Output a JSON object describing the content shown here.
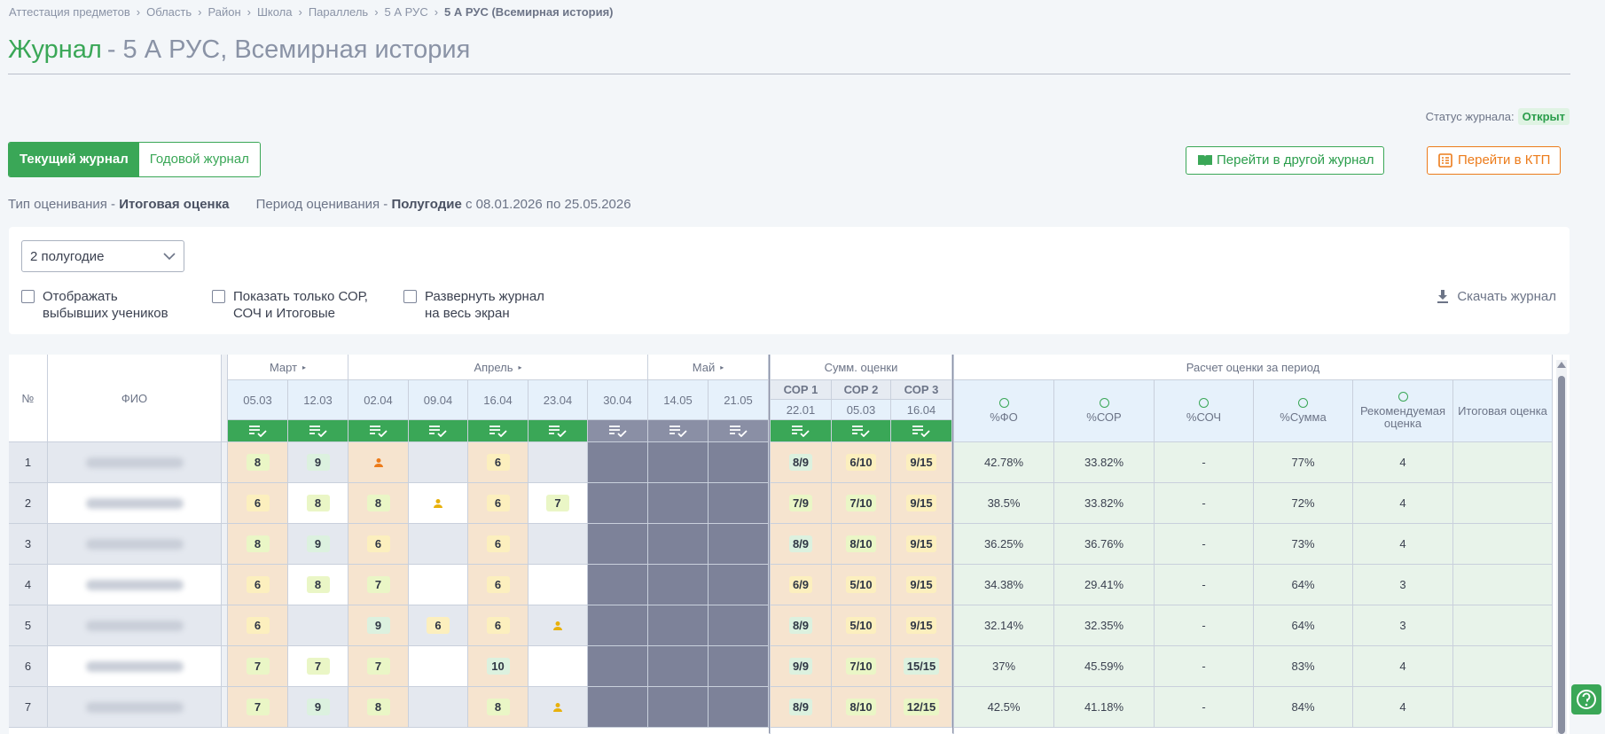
{
  "breadcrumbs": [
    "Аттестация предметов",
    "Область",
    "Район",
    "Школа",
    "Параллель",
    "5 А РУС",
    "5 А РУС (Всемирная история)"
  ],
  "header": {
    "title": "Журнал",
    "subtitle": "- 5 А РУС, Всемирная история",
    "status_label": "Статус журнала:",
    "status": "Открыт"
  },
  "tabs": [
    "Текущий журнал",
    "Годовой журнал"
  ],
  "actions": [
    "Перейти в другой журнал",
    "Перейти в КТП"
  ],
  "info": {
    "type_label": "Тип оценивания -",
    "type_value": "Итоговая оценка",
    "period_label": "Период оценивания -",
    "period_value": "Полугодие",
    "period_range": "с 08.01.2026 по 25.05.2026"
  },
  "filters": {
    "period": "2 полугодие",
    "checkboxes": [
      [
        "Отображать",
        "выбывших учеников"
      ],
      [
        "Показать только СОР,",
        "СОЧ и Итоговые"
      ],
      [
        "Развернуть журнал",
        "на весь экран"
      ]
    ],
    "download": "Скачать журнал"
  },
  "table": {
    "columns": {
      "number": "№",
      "name": "ФИО",
      "months": [
        {
          "name": "Март",
          "dates": [
            "05.03",
            "12.03"
          ]
        },
        {
          "name": "Апрель",
          "dates": [
            "02.04",
            "09.04",
            "16.04",
            "23.04",
            "30.04"
          ]
        },
        {
          "name": "Май",
          "dates": [
            "14.05",
            "21.05"
          ]
        }
      ],
      "sum": {
        "name": "Сумм. оценки",
        "items": [
          {
            "name": "СОР 1",
            "date": "22.01"
          },
          {
            "name": "СОР 2",
            "date": "05.03"
          },
          {
            "name": "СОР 3",
            "date": "16.04"
          }
        ]
      },
      "calc": {
        "name": "Расчет оценки за период",
        "items": [
          "%ФО",
          "%СОР",
          "%СОЧ",
          "%Сумма",
          "Рекомендуемая оценка",
          "Итоговая оценка"
        ]
      }
    },
    "rows": [
      {
        "number": 1,
        "marks": [
          8,
          9,
          null,
          null,
          6,
          null,
          null,
          null,
          null
        ],
        "sor": [
          "8/9",
          "6/10",
          "9/15"
        ],
        "calc": [
          "42.78%",
          "33.82%",
          "-",
          "77%",
          "4"
        ]
      },
      {
        "number": 2,
        "marks": [
          6,
          8,
          8,
          null,
          6,
          7,
          null,
          null,
          null
        ],
        "sor": [
          "7/9",
          "7/10",
          "9/15"
        ],
        "calc": [
          "38.5%",
          "33.82%",
          "-",
          "72%",
          "4"
        ]
      },
      {
        "number": 3,
        "marks": [
          8,
          9,
          6,
          null,
          6,
          null,
          null,
          null,
          null
        ],
        "sor": [
          "8/9",
          "8/10",
          "9/15"
        ],
        "calc": [
          "36.25%",
          "36.76%",
          "-",
          "73%",
          "4"
        ]
      },
      {
        "number": 4,
        "marks": [
          6,
          8,
          7,
          null,
          6,
          null,
          null,
          null,
          null
        ],
        "sor": [
          "6/9",
          "5/10",
          "9/15"
        ],
        "calc": [
          "34.38%",
          "29.41%",
          "-",
          "64%",
          "3"
        ]
      },
      {
        "number": 5,
        "marks": [
          6,
          null,
          9,
          6,
          6,
          null,
          null,
          null,
          null
        ],
        "sor": [
          "8/9",
          "5/10",
          "9/15"
        ],
        "calc": [
          "32.14%",
          "32.35%",
          "-",
          "64%",
          "3"
        ]
      },
      {
        "number": 6,
        "marks": [
          7,
          7,
          7,
          null,
          10,
          null,
          null,
          null,
          null
        ],
        "sor": [
          "9/9",
          "7/10",
          "15/15"
        ],
        "calc": [
          "37%",
          "45.59%",
          "-",
          "83%",
          "4"
        ]
      },
      {
        "number": 7,
        "marks": [
          7,
          9,
          8,
          null,
          8,
          null,
          null,
          null,
          null
        ],
        "sor": [
          "8/9",
          "8/10",
          "12/15"
        ],
        "calc": [
          "42.5%",
          "41.18%",
          "-",
          "84%",
          "4"
        ]
      }
    ]
  }
}
